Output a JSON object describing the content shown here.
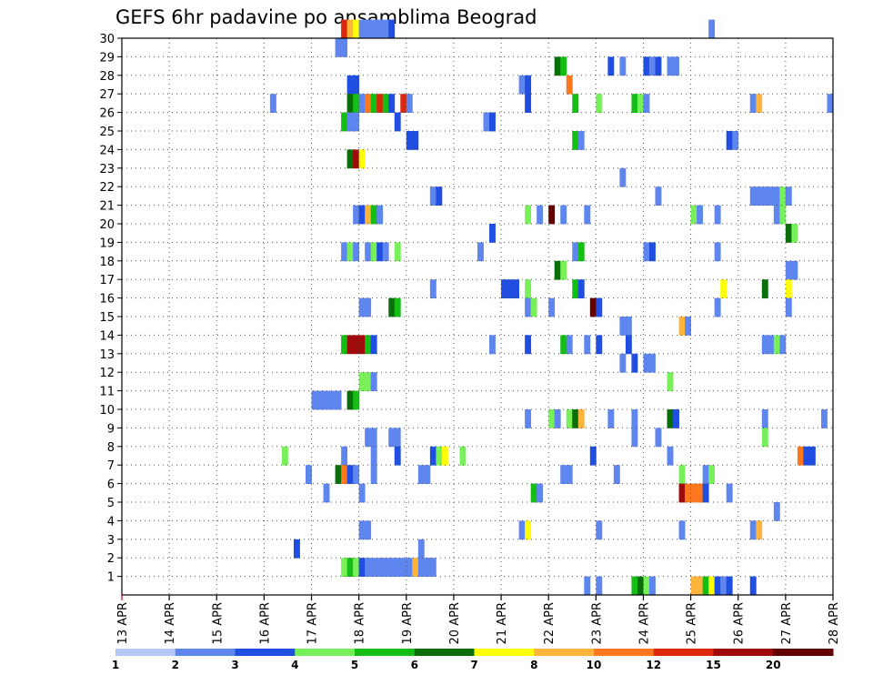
{
  "chart_data": {
    "type": "heatmap",
    "title": "GEFS 6hr padavine po ansamblima Beograd",
    "xlabel": "",
    "ylabel": "",
    "x_tick_labels": [
      "13 APR",
      "14 APR",
      "15 APR",
      "16 APR",
      "17 APR",
      "18 APR",
      "19 APR",
      "20 APR",
      "21 APR",
      "22 APR",
      "23 APR",
      "24 APR",
      "25 APR",
      "26 APR",
      "27 APR",
      "28 APR"
    ],
    "x_range": [
      0,
      60
    ],
    "y_tick_labels": [
      "1",
      "2",
      "3",
      "4",
      "5",
      "6",
      "7",
      "8",
      "9",
      "10",
      "11",
      "12",
      "13",
      "14",
      "15",
      "16",
      "17",
      "18",
      "19",
      "20",
      "21",
      "22",
      "23",
      "24",
      "25",
      "26",
      "27",
      "28",
      "29",
      "30"
    ],
    "y_range": [
      0,
      30
    ],
    "grid": true,
    "colorbar": {
      "position": "bottom",
      "tick_labels": [
        "1",
        "2",
        "3",
        "4",
        "5",
        "6",
        "7",
        "8",
        "10",
        "12",
        "15",
        "20"
      ],
      "colors": [
        "#b4c8f8",
        "#5f86ef",
        "#1f4ee0",
        "#78f05a",
        "#14be14",
        "#0a6e0a",
        "#ffff0a",
        "#ffb43c",
        "#ff781e",
        "#dc280a",
        "#a00a0a",
        "#640000"
      ]
    },
    "cells": [
      [
        30,
        18.5,
        9
      ],
      [
        30,
        19,
        7
      ],
      [
        30,
        19.5,
        6
      ],
      [
        30,
        20,
        1
      ],
      [
        30,
        20.5,
        1
      ],
      [
        30,
        21,
        1
      ],
      [
        30,
        21.5,
        1
      ],
      [
        30,
        22,
        1
      ],
      [
        30,
        22.5,
        2
      ],
      [
        30,
        49.5,
        1
      ],
      [
        29,
        18,
        1
      ],
      [
        29,
        18.5,
        1
      ],
      [
        28,
        36.5,
        5
      ],
      [
        28,
        37,
        4
      ],
      [
        28,
        41,
        2
      ],
      [
        28,
        42,
        1
      ],
      [
        28,
        44,
        2
      ],
      [
        28,
        44.5,
        1
      ],
      [
        28,
        45,
        2
      ],
      [
        28,
        46,
        1
      ],
      [
        28,
        46.5,
        1
      ],
      [
        27,
        19,
        2
      ],
      [
        27,
        19.5,
        2
      ],
      [
        27,
        33.5,
        1
      ],
      [
        27,
        34,
        2
      ],
      [
        27,
        37.5,
        8
      ],
      [
        26,
        12.5,
        1
      ],
      [
        26,
        19,
        5
      ],
      [
        26,
        19.5,
        4
      ],
      [
        26,
        20,
        1
      ],
      [
        26,
        20.5,
        8
      ],
      [
        26,
        21,
        4
      ],
      [
        26,
        21.5,
        9
      ],
      [
        26,
        22,
        4
      ],
      [
        26,
        22.5,
        2
      ],
      [
        26,
        23.5,
        9
      ],
      [
        26,
        24,
        1
      ],
      [
        26,
        34,
        2
      ],
      [
        26,
        38,
        4
      ],
      [
        26,
        40,
        3
      ],
      [
        26,
        43,
        4
      ],
      [
        26,
        43.5,
        3
      ],
      [
        26,
        44,
        1
      ],
      [
        26,
        53,
        1
      ],
      [
        26,
        53.5,
        7
      ],
      [
        26,
        59.5,
        1
      ],
      [
        25,
        18.5,
        4
      ],
      [
        25,
        19,
        1
      ],
      [
        25,
        19.5,
        1
      ],
      [
        25,
        23,
        2
      ],
      [
        25,
        30.5,
        1
      ],
      [
        25,
        31,
        2
      ],
      [
        24,
        24,
        2
      ],
      [
        24,
        24.5,
        2
      ],
      [
        24,
        38,
        4
      ],
      [
        24,
        38.5,
        1
      ],
      [
        24,
        51,
        2
      ],
      [
        24,
        51.5,
        1
      ],
      [
        23,
        19,
        5
      ],
      [
        23,
        19.5,
        10
      ],
      [
        23,
        20,
        6
      ],
      [
        22,
        42,
        1
      ],
      [
        21,
        26,
        1
      ],
      [
        21,
        26.5,
        2
      ],
      [
        21,
        45,
        1
      ],
      [
        21,
        53,
        1
      ],
      [
        21,
        53.5,
        1
      ],
      [
        21,
        54,
        1
      ],
      [
        21,
        54.5,
        1
      ],
      [
        21,
        55,
        1
      ],
      [
        21,
        55.5,
        3
      ],
      [
        21,
        56,
        1
      ],
      [
        20,
        19.5,
        1
      ],
      [
        20,
        20,
        2
      ],
      [
        20,
        20.5,
        7
      ],
      [
        20,
        21,
        4
      ],
      [
        20,
        21.5,
        1
      ],
      [
        20,
        34,
        3
      ],
      [
        20,
        35,
        1
      ],
      [
        20,
        36,
        11
      ],
      [
        20,
        37,
        1
      ],
      [
        20,
        39,
        1
      ],
      [
        20,
        48,
        3
      ],
      [
        20,
        48.5,
        1
      ],
      [
        20,
        50,
        1
      ],
      [
        20,
        55,
        1
      ],
      [
        20,
        55.5,
        3
      ],
      [
        19,
        31,
        2
      ],
      [
        19,
        56,
        5
      ],
      [
        19,
        56.5,
        3
      ],
      [
        18,
        18.5,
        1
      ],
      [
        18,
        19,
        3
      ],
      [
        18,
        19.5,
        1
      ],
      [
        18,
        20.5,
        1
      ],
      [
        18,
        21,
        3
      ],
      [
        18,
        21.5,
        2
      ],
      [
        18,
        22,
        1
      ],
      [
        18,
        23,
        3
      ],
      [
        18,
        30,
        1
      ],
      [
        18,
        38,
        1
      ],
      [
        18,
        38.5,
        4
      ],
      [
        18,
        44,
        1
      ],
      [
        18,
        44.5,
        2
      ],
      [
        18,
        50,
        1
      ],
      [
        17,
        36.5,
        5
      ],
      [
        17,
        37,
        3
      ],
      [
        17,
        56,
        1
      ],
      [
        17,
        56.5,
        1
      ],
      [
        16,
        26,
        1
      ],
      [
        16,
        32,
        2
      ],
      [
        16,
        32.5,
        2
      ],
      [
        16,
        33,
        2
      ],
      [
        16,
        34,
        3
      ],
      [
        16,
        38,
        4
      ],
      [
        16,
        38.5,
        2
      ],
      [
        16,
        50.5,
        6
      ],
      [
        16,
        54,
        5
      ],
      [
        16,
        56,
        6
      ],
      [
        15,
        20,
        1
      ],
      [
        15,
        20.5,
        1
      ],
      [
        15,
        22.5,
        5
      ],
      [
        15,
        23,
        4
      ],
      [
        15,
        34,
        1
      ],
      [
        15,
        34.5,
        3
      ],
      [
        15,
        36,
        1
      ],
      [
        15,
        39.5,
        11
      ],
      [
        15,
        40,
        2
      ],
      [
        15,
        50,
        1
      ],
      [
        15,
        56,
        1
      ],
      [
        14,
        42,
        1
      ],
      [
        14,
        42.5,
        1
      ],
      [
        14,
        47,
        7
      ],
      [
        14,
        47.5,
        1
      ],
      [
        13,
        18.5,
        4
      ],
      [
        13,
        19,
        10
      ],
      [
        13,
        19.5,
        10
      ],
      [
        13,
        20,
        10
      ],
      [
        13,
        20.5,
        4
      ],
      [
        13,
        21,
        2
      ],
      [
        13,
        31,
        1
      ],
      [
        13,
        34,
        2
      ],
      [
        13,
        37,
        4
      ],
      [
        13,
        37.5,
        1
      ],
      [
        13,
        39,
        1
      ],
      [
        13,
        40,
        2
      ],
      [
        13,
        42.5,
        2
      ],
      [
        13,
        54,
        1
      ],
      [
        13,
        54.5,
        1
      ],
      [
        13,
        55,
        3
      ],
      [
        13,
        55.5,
        1
      ],
      [
        12,
        42,
        1
      ],
      [
        12,
        43,
        2
      ],
      [
        12,
        44,
        1
      ],
      [
        12,
        44.5,
        1
      ],
      [
        11,
        20,
        3
      ],
      [
        11,
        20.5,
        3
      ],
      [
        11,
        21,
        1
      ],
      [
        11,
        46,
        3
      ],
      [
        10,
        16,
        1
      ],
      [
        10,
        16.5,
        1
      ],
      [
        10,
        17,
        1
      ],
      [
        10,
        17.5,
        1
      ],
      [
        10,
        18,
        1
      ],
      [
        10,
        19,
        5
      ],
      [
        10,
        19.5,
        4
      ],
      [
        9,
        34,
        1
      ],
      [
        9,
        36,
        3
      ],
      [
        9,
        36.5,
        1
      ],
      [
        9,
        37.5,
        3
      ],
      [
        9,
        38,
        5
      ],
      [
        9,
        38.5,
        7
      ],
      [
        9,
        41,
        1
      ],
      [
        9,
        43,
        1
      ],
      [
        9,
        46,
        5
      ],
      [
        9,
        46.5,
        2
      ],
      [
        9,
        54,
        1
      ],
      [
        9,
        59,
        1
      ],
      [
        8,
        20.5,
        1
      ],
      [
        8,
        21,
        1
      ],
      [
        8,
        22.5,
        1
      ],
      [
        8,
        23,
        1
      ],
      [
        8,
        43,
        1
      ],
      [
        8,
        45,
        1
      ],
      [
        8,
        54,
        3
      ],
      [
        7,
        13.5,
        3
      ],
      [
        7,
        18.5,
        1
      ],
      [
        7,
        21,
        1
      ],
      [
        7,
        23,
        2
      ],
      [
        7,
        26,
        2
      ],
      [
        7,
        26.5,
        3
      ],
      [
        7,
        27,
        6
      ],
      [
        7,
        28.5,
        3
      ],
      [
        7,
        39.5,
        2
      ],
      [
        7,
        46,
        1
      ],
      [
        7,
        57,
        8
      ],
      [
        7,
        57.5,
        2
      ],
      [
        7,
        58,
        2
      ],
      [
        6,
        15.5,
        1
      ],
      [
        6,
        18,
        5
      ],
      [
        6,
        18.5,
        8
      ],
      [
        6,
        19,
        2
      ],
      [
        6,
        19.5,
        1
      ],
      [
        6,
        21,
        1
      ],
      [
        6,
        25,
        1
      ],
      [
        6,
        25.5,
        1
      ],
      [
        6,
        37,
        1
      ],
      [
        6,
        37.5,
        1
      ],
      [
        6,
        41.5,
        1
      ],
      [
        6,
        47,
        3
      ],
      [
        6,
        49,
        1
      ],
      [
        6,
        49.5,
        3
      ],
      [
        5,
        17,
        1
      ],
      [
        5,
        20,
        1
      ],
      [
        5,
        34.5,
        4
      ],
      [
        5,
        35,
        1
      ],
      [
        5,
        47,
        10
      ],
      [
        5,
        47.5,
        8
      ],
      [
        5,
        48,
        8
      ],
      [
        5,
        48.5,
        8
      ],
      [
        5,
        49,
        2
      ],
      [
        5,
        51,
        1
      ],
      [
        4,
        55,
        1
      ],
      [
        3,
        20,
        1
      ],
      [
        3,
        20.5,
        1
      ],
      [
        3,
        33.5,
        1
      ],
      [
        3,
        34,
        6
      ],
      [
        3,
        40,
        1
      ],
      [
        3,
        47,
        1
      ],
      [
        3,
        53,
        1
      ],
      [
        3,
        53.5,
        7
      ],
      [
        2,
        14.5,
        2
      ],
      [
        2,
        25,
        1
      ],
      [
        1,
        18.5,
        3
      ],
      [
        1,
        19,
        4
      ],
      [
        1,
        19.5,
        3
      ],
      [
        1,
        20,
        2
      ],
      [
        1,
        20.5,
        1
      ],
      [
        1,
        21,
        1
      ],
      [
        1,
        21.5,
        1
      ],
      [
        1,
        22,
        1
      ],
      [
        1,
        22.5,
        1
      ],
      [
        1,
        23,
        1
      ],
      [
        1,
        23.5,
        1
      ],
      [
        1,
        24,
        1
      ],
      [
        1,
        24.5,
        7
      ],
      [
        1,
        25,
        1
      ],
      [
        1,
        25.5,
        1
      ],
      [
        1,
        26,
        1
      ],
      [
        0,
        39,
        1
      ],
      [
        0,
        40,
        1
      ],
      [
        0,
        43,
        4
      ],
      [
        0,
        43.5,
        5
      ],
      [
        0,
        44,
        3
      ],
      [
        0,
        44.5,
        1
      ],
      [
        0,
        48,
        7
      ],
      [
        0,
        48.5,
        7
      ],
      [
        0,
        49,
        4
      ],
      [
        0,
        49.5,
        6
      ],
      [
        0,
        50,
        2
      ],
      [
        0,
        50.5,
        1
      ],
      [
        0,
        51,
        2
      ],
      [
        0,
        53,
        2
      ]
    ]
  }
}
